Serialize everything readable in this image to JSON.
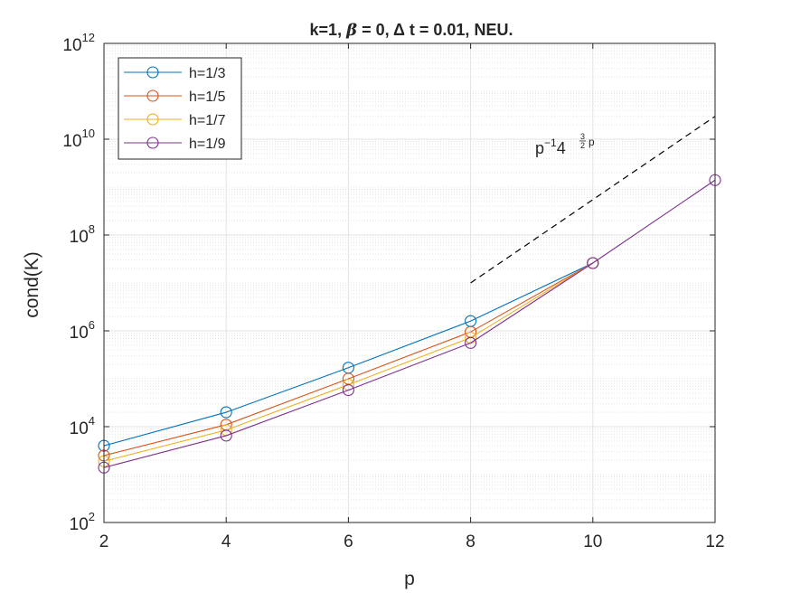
{
  "chart_data": {
    "type": "line",
    "title": "k=1, β = 0, Δ t = 0.01,  NEU.",
    "title_parts": {
      "k_part": "k=1,",
      "beta_symbol": "β",
      "beta_value": "= 0,",
      "delta_symbol": "Δ",
      "dt_value": "t = 0.01,",
      "bc": "NEU."
    },
    "xlabel": "p",
    "ylabel": "cond(K)",
    "xlim": [
      2,
      12
    ],
    "ylim": [
      100,
      1000000000000
    ],
    "yscale": "log",
    "grid": true,
    "minor_grid": true,
    "legend_position": "top-left",
    "x_ticks": [
      "2",
      "4",
      "6",
      "8",
      "10",
      "12"
    ],
    "y_ticks": [
      {
        "base": "10",
        "exp": "2",
        "value": 100
      },
      {
        "base": "10",
        "exp": "4",
        "value": 10000
      },
      {
        "base": "10",
        "exp": "6",
        "value": 1000000
      },
      {
        "base": "10",
        "exp": "8",
        "value": 100000000
      },
      {
        "base": "10",
        "exp": "10",
        "value": 10000000000
      },
      {
        "base": "10",
        "exp": "12",
        "value": 1000000000000
      }
    ],
    "series": [
      {
        "name": "h=1/3",
        "color": "#0072BD",
        "x": [
          2,
          4,
          6,
          8,
          10
        ],
        "y": [
          4000,
          20000,
          170000,
          1600000,
          26000000
        ]
      },
      {
        "name": "h=1/5",
        "color": "#D95319",
        "x": [
          2,
          4,
          6,
          8,
          10
        ],
        "y": [
          2500,
          11000,
          100000,
          950000,
          26000000
        ]
      },
      {
        "name": "h=1/7",
        "color": "#EDB120",
        "x": [
          2,
          4,
          6,
          8,
          10
        ],
        "y": [
          1900,
          8500,
          75000,
          720000,
          26000000
        ]
      },
      {
        "name": "h=1/9",
        "color": "#7E2F8E",
        "x": [
          2,
          4,
          6,
          8,
          10,
          12
        ],
        "y": [
          1400,
          6500,
          58000,
          560000,
          26000000,
          1400000000
        ]
      }
    ],
    "reference_line": {
      "style": "dashed",
      "color": "#000000",
      "x": [
        8,
        12
      ],
      "y": [
        10000000,
        30000000000
      ],
      "label_base": "p",
      "label_exp1": "−1",
      "label_mid": "4",
      "label_frac_num": "3",
      "label_frac_den": "2",
      "label_exp2": "p",
      "label_anchor": {
        "x": 9.5,
        "y": 6500000000
      }
    }
  }
}
